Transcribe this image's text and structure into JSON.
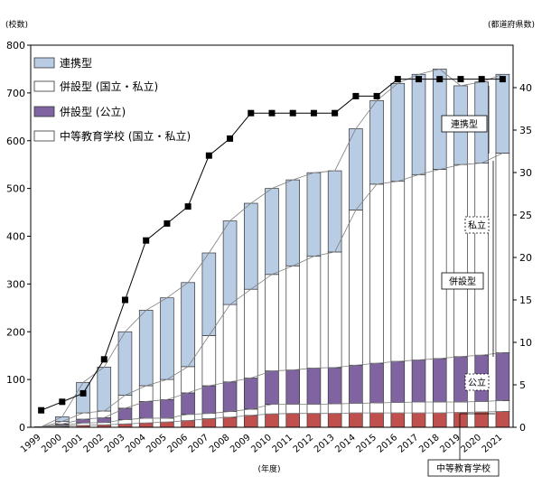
{
  "chart_data": {
    "type": "bar",
    "subtype": "stacked-bar-with-line",
    "left_axis_unit": "(校数)",
    "right_axis_unit": "(都道府県数)",
    "xlabel": "(年度)",
    "categories": [
      "1999",
      "2000",
      "2001",
      "2002",
      "2003",
      "2004",
      "2005",
      "2006",
      "2007",
      "2008",
      "2009",
      "2010",
      "2011",
      "2012",
      "2013",
      "2014",
      "2015",
      "2016",
      "2017",
      "2018",
      "2019",
      "2020",
      "2021"
    ],
    "ylim_left": [
      0,
      800
    ],
    "ylim_right": [
      0,
      45
    ],
    "yticks_left": [
      0,
      100,
      200,
      300,
      400,
      500,
      600,
      700,
      800
    ],
    "yticks_right": [
      0,
      5,
      10,
      15,
      20,
      25,
      30,
      35,
      40
    ],
    "series": [
      {
        "name": "中等教育学校 (国立・私立)",
        "color": "#c0504d",
        "values": [
          1,
          2,
          4,
          5,
          7,
          9,
          11,
          14,
          18,
          21,
          25,
          28,
          29,
          29,
          29,
          30,
          30,
          30,
          30,
          30,
          31,
          32,
          33
        ]
      },
      {
        "name": "中等教育学校 (公立)",
        "color": "#ffffff",
        "values": [
          0,
          2,
          5,
          5,
          9,
          10,
          8,
          13,
          11,
          12,
          13,
          20,
          19,
          19,
          20,
          20,
          21,
          22,
          23,
          23,
          22,
          22,
          23
        ]
      },
      {
        "name": "併設型 (公立)",
        "color": "#8064a2",
        "values": [
          0,
          3,
          8,
          10,
          24,
          35,
          39,
          45,
          58,
          62,
          65,
          70,
          72,
          76,
          76,
          80,
          83,
          86,
          88,
          91,
          95,
          97,
          100
        ]
      },
      {
        "name": "併設型 (国立・私立)",
        "color": "#ffffff",
        "values": [
          0,
          5,
          13,
          14,
          27,
          33,
          42,
          55,
          105,
          162,
          186,
          202,
          218,
          234,
          242,
          325,
          375,
          377,
          388,
          396,
          402,
          402,
          418
        ]
      },
      {
        "name": "連携型",
        "color": "#b8cce4",
        "values": [
          0,
          10,
          64,
          92,
          133,
          158,
          171,
          176,
          173,
          175,
          180,
          180,
          180,
          175,
          170,
          170,
          175,
          205,
          210,
          210,
          165,
          170,
          165
        ]
      }
    ],
    "line_series": {
      "name": "都道府県数",
      "axis": "right",
      "values": [
        2,
        3,
        4,
        8,
        15,
        22,
        24,
        26,
        32,
        34,
        37,
        37,
        37,
        37,
        37,
        39,
        39,
        41,
        41,
        41,
        41,
        41,
        41
      ]
    },
    "legend": {
      "placement": "top-left",
      "items": [
        "連携型",
        "併設型 (国立・私立)",
        "併設型 (公立)",
        "中等教育学校 (国立・私立)"
      ]
    },
    "annotations": [
      "連携型",
      "私立",
      "併設型",
      "公立",
      "中等教育学校"
    ]
  }
}
